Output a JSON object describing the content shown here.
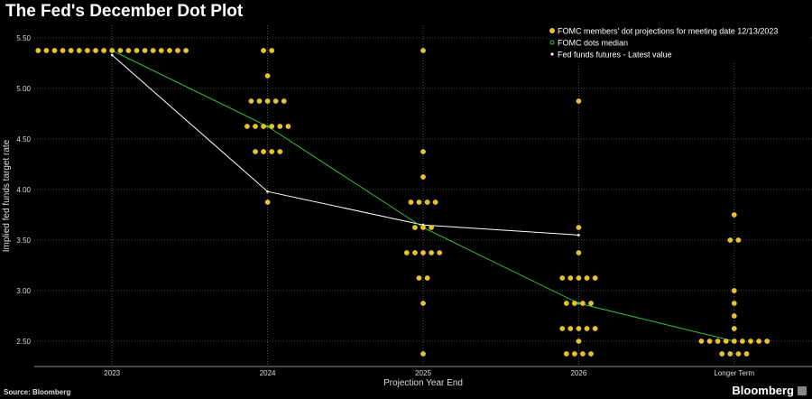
{
  "header": {
    "title": "The Fed's December Dot Plot"
  },
  "footer": {
    "source": "Source: Bloomberg",
    "brand": "Bloomberg",
    "brand_icon": "bloomberg-badge-icon"
  },
  "colors": {
    "dots": "#e8c12e",
    "median": "#2fc832",
    "futures": "#ffffff",
    "grid": "#666666",
    "background": "#000000"
  },
  "chart_data": {
    "type": "scatter",
    "title": "The Fed's December Dot Plot",
    "xlabel": "Projection Year End",
    "ylabel": "Implied fed funds target rate",
    "categories": [
      "2023",
      "2024",
      "2025",
      "2026",
      "Longer Term"
    ],
    "ylim": [
      2.25,
      5.625
    ],
    "yticks": [
      "2.50",
      "3.00",
      "3.50",
      "4.00",
      "4.50",
      "5.00",
      "5.50"
    ],
    "grid": true,
    "legend_position": "top-right",
    "dots": [
      {
        "category": "2023",
        "rates": [
          {
            "y": 5.375,
            "count": 19
          }
        ]
      },
      {
        "category": "2024",
        "rates": [
          {
            "y": 5.375,
            "count": 2
          },
          {
            "y": 5.125,
            "count": 1
          },
          {
            "y": 4.875,
            "count": 5
          },
          {
            "y": 4.625,
            "count": 6
          },
          {
            "y": 4.375,
            "count": 4
          },
          {
            "y": 3.875,
            "count": 1
          }
        ]
      },
      {
        "category": "2025",
        "rates": [
          {
            "y": 5.375,
            "count": 1
          },
          {
            "y": 4.375,
            "count": 1
          },
          {
            "y": 4.125,
            "count": 1
          },
          {
            "y": 3.875,
            "count": 4
          },
          {
            "y": 3.625,
            "count": 3
          },
          {
            "y": 3.375,
            "count": 5
          },
          {
            "y": 3.125,
            "count": 2
          },
          {
            "y": 2.875,
            "count": 1
          },
          {
            "y": 2.375,
            "count": 1
          }
        ]
      },
      {
        "category": "2026",
        "rates": [
          {
            "y": 4.875,
            "count": 1
          },
          {
            "y": 3.625,
            "count": 1
          },
          {
            "y": 3.375,
            "count": 1
          },
          {
            "y": 3.125,
            "count": 5
          },
          {
            "y": 2.875,
            "count": 4
          },
          {
            "y": 2.625,
            "count": 5
          },
          {
            "y": 2.5,
            "count": 1
          },
          {
            "y": 2.375,
            "count": 4
          }
        ]
      },
      {
        "category": "Longer Term",
        "rates": [
          {
            "y": 3.75,
            "count": 1
          },
          {
            "y": 3.5,
            "count": 2
          },
          {
            "y": 3.0,
            "count": 1
          },
          {
            "y": 2.875,
            "count": 1
          },
          {
            "y": 2.75,
            "count": 1
          },
          {
            "y": 2.625,
            "count": 1
          },
          {
            "y": 2.5,
            "count": 9
          },
          {
            "y": 2.375,
            "count": 4
          }
        ]
      }
    ],
    "series": [
      {
        "name": "FOMC members' dot projections for meeting date 12/13/2023",
        "marker": "dot"
      },
      {
        "name": "FOMC dots median",
        "marker": "line",
        "values": [
          {
            "category": "2023",
            "y": 5.375
          },
          {
            "category": "2024",
            "y": 4.625
          },
          {
            "category": "2025",
            "y": 3.625
          },
          {
            "category": "2026",
            "y": 2.875
          },
          {
            "category": "Longer Term",
            "y": 2.5
          }
        ]
      },
      {
        "name": "Fed funds futures - Latest value",
        "marker": "line",
        "values": [
          {
            "category": "2023",
            "y": 5.33
          },
          {
            "category": "2024",
            "y": 3.98
          },
          {
            "category": "2025",
            "y": 3.65
          },
          {
            "category": "2026",
            "y": 3.55
          }
        ]
      }
    ]
  }
}
